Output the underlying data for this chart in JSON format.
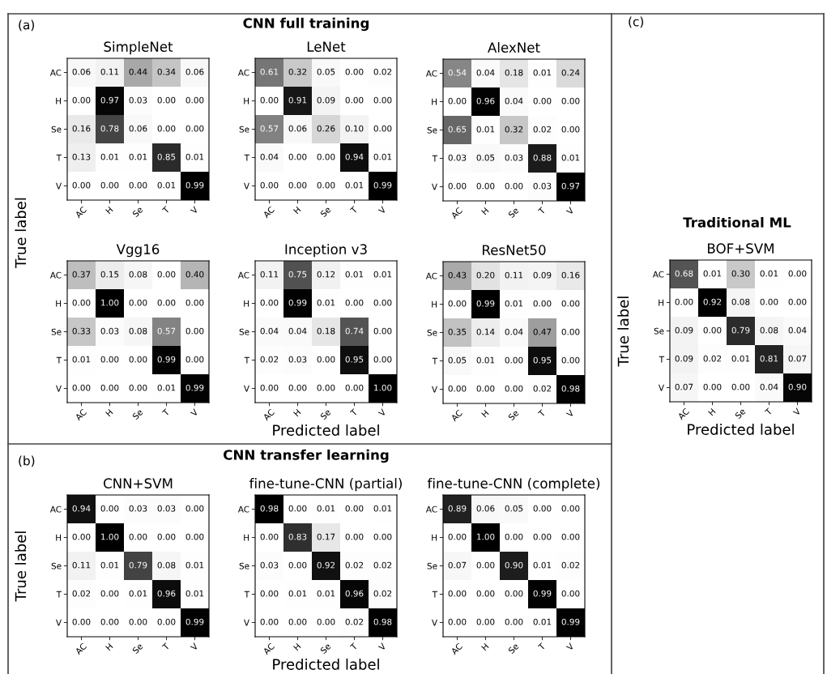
{
  "chart_data": [
    {
      "type": "heatmap",
      "title": "SimpleNet",
      "annotations": [
        "(a)",
        "CNN full training"
      ],
      "categories": [
        "AC",
        "H",
        "Se",
        "T",
        "V"
      ],
      "y_categories": [
        "AC",
        "H",
        "Se",
        "T",
        "V"
      ],
      "data_labels": true,
      "cells": [
        [
          0.06,
          0.11,
          0.44,
          0.34,
          0.06
        ],
        [
          0.0,
          0.97,
          0.03,
          0.0,
          0.0
        ],
        [
          0.16,
          0.78,
          0.06,
          0.0,
          0.0
        ],
        [
          0.13,
          0.01,
          0.01,
          0.85,
          0.01
        ],
        [
          0.0,
          0.0,
          0.0,
          0.01,
          0.99
        ]
      ],
      "cell_labels": [
        [
          "0.06",
          "0.11",
          "0.44",
          "0.34",
          "0.06"
        ],
        [
          "0.00",
          "0.97",
          "0.03",
          "0.00",
          "0.00"
        ],
        [
          "0.16",
          "0.78",
          "0.06",
          "0.00",
          "0.00"
        ],
        [
          "0.13",
          "0.01",
          "0.01",
          "0.85",
          "0.01"
        ],
        [
          "0.00",
          "0.00",
          "0.00",
          "0.01",
          "0.99"
        ]
      ]
    },
    {
      "type": "heatmap",
      "title": "LeNet",
      "categories": [
        "AC",
        "H",
        "Se",
        "T",
        "V"
      ],
      "y_categories": [
        "AC",
        "H",
        "Se",
        "T",
        "V"
      ],
      "data_labels": true,
      "cells": [
        [
          0.61,
          0.32,
          0.05,
          0.0,
          0.02
        ],
        [
          0.0,
          0.91,
          0.09,
          0.0,
          0.0
        ],
        [
          0.57,
          0.06,
          0.26,
          0.1,
          0.0
        ],
        [
          0.04,
          0.0,
          0.0,
          0.94,
          0.01
        ],
        [
          0.0,
          0.0,
          0.0,
          0.01,
          0.99
        ]
      ],
      "cell_labels": [
        [
          "0.61",
          "0.32",
          "0.05",
          "0.00",
          "0.02"
        ],
        [
          "0.00",
          "0.91",
          "0.09",
          "0.00",
          "0.00"
        ],
        [
          "0.57",
          "0.06",
          "0.26",
          "0.10",
          "0.00"
        ],
        [
          "0.04",
          "0.00",
          "0.00",
          "0.94",
          "0.01"
        ],
        [
          "0.00",
          "0.00",
          "0.00",
          "0.01",
          "0.99"
        ]
      ]
    },
    {
      "type": "heatmap",
      "title": "AlexNet",
      "categories": [
        "AC",
        "H",
        "Se",
        "T",
        "V"
      ],
      "y_categories": [
        "AC",
        "H",
        "Se",
        "T",
        "V"
      ],
      "data_labels": true,
      "cells": [
        [
          0.54,
          0.04,
          0.18,
          0.01,
          0.24
        ],
        [
          0.0,
          0.96,
          0.04,
          0.0,
          0.0
        ],
        [
          0.65,
          0.01,
          0.32,
          0.02,
          0.0
        ],
        [
          0.03,
          0.05,
          0.03,
          0.88,
          0.01
        ],
        [
          0.0,
          0.0,
          0.0,
          0.03,
          0.97
        ]
      ],
      "cell_labels": [
        [
          "0.54",
          "0.04",
          "0.18",
          "0.01",
          "0.24"
        ],
        [
          "0.00",
          "0.96",
          "0.04",
          "0.00",
          "0.00"
        ],
        [
          "0.65",
          "0.01",
          "0.32",
          "0.02",
          "0.00"
        ],
        [
          "0.03",
          "0.05",
          "0.03",
          "0.88",
          "0.01"
        ],
        [
          "0.00",
          "0.00",
          "0.00",
          "0.03",
          "0.97"
        ]
      ]
    },
    {
      "type": "heatmap",
      "title": "Vgg16",
      "ylabel": "True label",
      "categories": [
        "AC",
        "H",
        "Se",
        "T",
        "V"
      ],
      "y_categories": [
        "AC",
        "H",
        "Se",
        "T",
        "V"
      ],
      "data_labels": true,
      "cells": [
        [
          0.37,
          0.15,
          0.08,
          0.0,
          0.4
        ],
        [
          0.0,
          1.0,
          0.0,
          0.0,
          0.0
        ],
        [
          0.33,
          0.03,
          0.08,
          0.57,
          0.0
        ],
        [
          0.01,
          0.0,
          0.0,
          0.99,
          0.0
        ],
        [
          0.0,
          0.0,
          0.0,
          0.01,
          0.99
        ]
      ],
      "cell_labels": [
        [
          "0.37",
          "0.15",
          "0.08",
          "0.00",
          "0.40"
        ],
        [
          "0.00",
          "1.00",
          "0.00",
          "0.00",
          "0.00"
        ],
        [
          "0.33",
          "0.03",
          "0.08",
          "0.57",
          "0.00"
        ],
        [
          "0.01",
          "0.00",
          "0.00",
          "0.99",
          "0.00"
        ],
        [
          "0.00",
          "0.00",
          "0.00",
          "0.01",
          "0.99"
        ]
      ]
    },
    {
      "type": "heatmap",
      "title": "Inception v3",
      "xlabel": "Predicted label",
      "categories": [
        "AC",
        "H",
        "Se",
        "T",
        "V"
      ],
      "y_categories": [
        "AC",
        "H",
        "Se",
        "T",
        "V"
      ],
      "data_labels": true,
      "cells": [
        [
          0.11,
          0.75,
          0.12,
          0.01,
          0.01
        ],
        [
          0.0,
          0.99,
          0.01,
          0.0,
          0.0
        ],
        [
          0.04,
          0.04,
          0.18,
          0.74,
          0.0
        ],
        [
          0.02,
          0.03,
          0.0,
          0.95,
          0.0
        ],
        [
          0.0,
          0.0,
          0.0,
          0.0,
          1.0
        ]
      ],
      "cell_labels": [
        [
          "0.11",
          "0.75",
          "0.12",
          "0.01",
          "0.01"
        ],
        [
          "0.00",
          "0.99",
          "0.01",
          "0.00",
          "0.00"
        ],
        [
          "0.04",
          "0.04",
          "0.18",
          "0.74",
          "0.00"
        ],
        [
          "0.02",
          "0.03",
          "0.00",
          "0.95",
          "0.00"
        ],
        [
          "0.00",
          "0.00",
          "0.00",
          "0.00",
          "1.00"
        ]
      ]
    },
    {
      "type": "heatmap",
      "title": "ResNet50",
      "categories": [
        "AC",
        "H",
        "Se",
        "T",
        "V"
      ],
      "y_categories": [
        "AC",
        "H",
        "Se",
        "T",
        "V"
      ],
      "data_labels": true,
      "cells": [
        [
          0.43,
          0.2,
          0.11,
          0.09,
          0.16
        ],
        [
          0.0,
          0.99,
          0.01,
          0.0,
          0.0
        ],
        [
          0.35,
          0.14,
          0.04,
          0.47,
          0.0
        ],
        [
          0.05,
          0.01,
          0.0,
          0.95,
          0.0
        ],
        [
          0.0,
          0.0,
          0.0,
          0.02,
          0.98
        ]
      ],
      "cell_labels": [
        [
          "0.43",
          "0.20",
          "0.11",
          "0.09",
          "0.16"
        ],
        [
          "0.00",
          "0.99",
          "0.01",
          "0.00",
          "0.00"
        ],
        [
          "0.35",
          "0.14",
          "0.04",
          "0.47",
          "0.00"
        ],
        [
          "0.05",
          "0.01",
          "0.00",
          "0.95",
          "0.00"
        ],
        [
          "0.00",
          "0.00",
          "0.00",
          "0.02",
          "0.98"
        ]
      ]
    },
    {
      "type": "heatmap",
      "title": "CNN+SVM",
      "ylabel": "True label",
      "annotations": [
        "(b)",
        "CNN transfer learning"
      ],
      "categories": [
        "AC",
        "H",
        "Se",
        "T",
        "V"
      ],
      "y_categories": [
        "AC",
        "H",
        "Se",
        "T",
        "V"
      ],
      "data_labels": true,
      "cells": [
        [
          0.94,
          0.0,
          0.03,
          0.03,
          0.0
        ],
        [
          0.0,
          1.0,
          0.0,
          0.0,
          0.0
        ],
        [
          0.11,
          0.01,
          0.79,
          0.08,
          0.01
        ],
        [
          0.02,
          0.0,
          0.01,
          0.96,
          0.01
        ],
        [
          0.0,
          0.0,
          0.0,
          0.0,
          0.99
        ]
      ],
      "cell_labels": [
        [
          "0.94",
          "0.00",
          "0.03",
          "0.03",
          "0.00"
        ],
        [
          "0.00",
          "1.00",
          "0.00",
          "0.00",
          "0.00"
        ],
        [
          "0.11",
          "0.01",
          "0.79",
          "0.08",
          "0.01"
        ],
        [
          "0.02",
          "0.00",
          "0.01",
          "0.96",
          "0.01"
        ],
        [
          "0.00",
          "0.00",
          "0.00",
          "0.00",
          "0.99"
        ]
      ]
    },
    {
      "type": "heatmap",
      "title": "fine-tune-CNN (partial)",
      "xlabel": "Predicted label",
      "categories": [
        "AC",
        "H",
        "Se",
        "T",
        "V"
      ],
      "y_categories": [
        "AC",
        "H",
        "Se",
        "T",
        "V"
      ],
      "data_labels": true,
      "cells": [
        [
          0.98,
          0.0,
          0.01,
          0.0,
          0.01
        ],
        [
          0.0,
          0.83,
          0.17,
          0.0,
          0.0
        ],
        [
          0.03,
          0.0,
          0.92,
          0.02,
          0.02
        ],
        [
          0.0,
          0.01,
          0.01,
          0.96,
          0.02
        ],
        [
          0.0,
          0.0,
          0.0,
          0.02,
          0.98
        ]
      ],
      "cell_labels": [
        [
          "0.98",
          "0.00",
          "0.01",
          "0.00",
          "0.01"
        ],
        [
          "0.00",
          "0.83",
          "0.17",
          "0.00",
          "0.00"
        ],
        [
          "0.03",
          "0.00",
          "0.92",
          "0.02",
          "0.02"
        ],
        [
          "0.00",
          "0.01",
          "0.01",
          "0.96",
          "0.02"
        ],
        [
          "0.00",
          "0.00",
          "0.00",
          "0.02",
          "0.98"
        ]
      ]
    },
    {
      "type": "heatmap",
      "title": "fine-tune-CNN (complete)",
      "categories": [
        "AC",
        "H",
        "Se",
        "T",
        "V"
      ],
      "y_categories": [
        "AC",
        "H",
        "Se",
        "T",
        "V"
      ],
      "data_labels": true,
      "cells": [
        [
          0.89,
          0.06,
          0.05,
          0.0,
          0.0
        ],
        [
          0.0,
          1.0,
          0.0,
          0.0,
          0.0
        ],
        [
          0.07,
          0.0,
          0.9,
          0.01,
          0.02
        ],
        [
          0.0,
          0.0,
          0.0,
          0.99,
          0.0
        ],
        [
          0.0,
          0.0,
          0.0,
          0.01,
          0.99
        ]
      ],
      "cell_labels": [
        [
          "0.89",
          "0.06",
          "0.05",
          "0.00",
          "0.00"
        ],
        [
          "0.00",
          "1.00",
          "0.00",
          "0.00",
          "0.00"
        ],
        [
          "0.07",
          "0.00",
          "0.90",
          "0.01",
          "0.02"
        ],
        [
          "0.00",
          "0.00",
          "0.00",
          "0.99",
          "0.00"
        ],
        [
          "0.00",
          "0.00",
          "0.00",
          "0.01",
          "0.99"
        ]
      ]
    },
    {
      "type": "heatmap",
      "title": "BOF+SVM",
      "xlabel": "Predicted label",
      "ylabel": "True label",
      "annotations": [
        "(c)",
        "Traditional ML"
      ],
      "categories": [
        "AC",
        "H",
        "Se",
        "T",
        "V"
      ],
      "y_categories": [
        "AC",
        "H",
        "Se",
        "T",
        "V"
      ],
      "data_labels": true,
      "cells": [
        [
          0.68,
          0.01,
          0.3,
          0.01,
          0.0
        ],
        [
          0.0,
          0.92,
          0.08,
          0.0,
          0.0
        ],
        [
          0.09,
          0.0,
          0.79,
          0.08,
          0.04
        ],
        [
          0.09,
          0.02,
          0.01,
          0.81,
          0.07
        ],
        [
          0.07,
          0.0,
          0.0,
          0.04,
          0.9
        ]
      ],
      "cell_labels": [
        [
          "0.68",
          "0.01",
          "0.30",
          "0.01",
          "0.00"
        ],
        [
          "0.00",
          "0.92",
          "0.08",
          "0.00",
          "0.00"
        ],
        [
          "0.09",
          "0.00",
          "0.79",
          "0.08",
          "0.04"
        ],
        [
          "0.09",
          "0.02",
          "0.01",
          "0.81",
          "0.07"
        ],
        [
          "0.07",
          "0.00",
          "0.00",
          "0.04",
          "0.90"
        ]
      ]
    }
  ]
}
